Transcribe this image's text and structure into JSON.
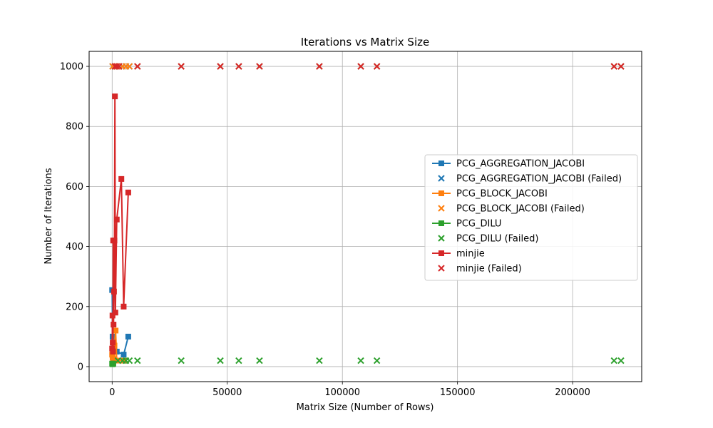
{
  "chart_data": {
    "type": "scatter",
    "title": "Iterations vs Matrix Size",
    "xlabel": "Matrix Size (Number of Rows)",
    "ylabel": "Number of Iterations",
    "xlim": [
      -10000,
      230000
    ],
    "ylim": [
      -50,
      1050
    ],
    "xticks": [
      0,
      50000,
      100000,
      150000,
      200000
    ],
    "yticks": [
      0,
      200,
      400,
      600,
      800,
      1000
    ],
    "grid": true,
    "legend_position": "right",
    "series": [
      {
        "name": "PCG_AGGREGATION_JACOBI",
        "kind": "line",
        "marker": "square",
        "color": "#1f77b4",
        "points": [
          [
            0,
            255
          ],
          [
            200,
            100
          ],
          [
            500,
            80
          ],
          [
            1000,
            60
          ],
          [
            2000,
            50
          ],
          [
            5000,
            40
          ],
          [
            7000,
            100
          ]
        ]
      },
      {
        "name": "PCG_AGGREGATION_JACOBI (Failed)",
        "kind": "scatter",
        "marker": "x",
        "color": "#1f77b4",
        "points": [
          [
            200,
            1000
          ],
          [
            1500,
            1000
          ],
          [
            3000,
            1000
          ],
          [
            4500,
            1000
          ],
          [
            6000,
            1000
          ],
          [
            7500,
            1000
          ],
          [
            11000,
            1000
          ],
          [
            30000,
            1000
          ],
          [
            47000,
            1000
          ],
          [
            55000,
            1000
          ],
          [
            64000,
            1000
          ],
          [
            90000,
            1000
          ],
          [
            108000,
            1000
          ],
          [
            115000,
            1000
          ],
          [
            218000,
            1000
          ],
          [
            221000,
            1000
          ]
        ]
      },
      {
        "name": "PCG_BLOCK_JACOBI",
        "kind": "line",
        "marker": "square",
        "color": "#ff7f0e",
        "points": [
          [
            0,
            40
          ],
          [
            200,
            30
          ],
          [
            500,
            25
          ],
          [
            1000,
            70
          ],
          [
            1500,
            120
          ],
          [
            2000,
            20
          ],
          [
            5000,
            20
          ]
        ]
      },
      {
        "name": "PCG_BLOCK_JACOBI (Failed)",
        "kind": "scatter",
        "marker": "x",
        "color": "#ff7f0e",
        "points": [
          [
            200,
            1000
          ],
          [
            1500,
            1000
          ],
          [
            3000,
            1000
          ],
          [
            4500,
            1000
          ],
          [
            6000,
            1000
          ],
          [
            7500,
            1000
          ],
          [
            11000,
            1000
          ],
          [
            30000,
            1000
          ],
          [
            47000,
            1000
          ],
          [
            55000,
            1000
          ],
          [
            64000,
            1000
          ],
          [
            90000,
            1000
          ],
          [
            108000,
            1000
          ],
          [
            115000,
            1000
          ],
          [
            218000,
            1000
          ],
          [
            221000,
            1000
          ]
        ]
      },
      {
        "name": "PCG_DILU",
        "kind": "line",
        "marker": "square",
        "color": "#2ca02c",
        "points": [
          [
            0,
            10
          ],
          [
            200,
            8
          ],
          [
            500,
            10
          ]
        ]
      },
      {
        "name": "PCG_DILU (Failed)",
        "kind": "scatter",
        "marker": "x",
        "color": "#2ca02c",
        "points": [
          [
            2500,
            20
          ],
          [
            4500,
            20
          ],
          [
            6000,
            20
          ],
          [
            7500,
            20
          ],
          [
            11000,
            20
          ],
          [
            30000,
            20
          ],
          [
            47000,
            20
          ],
          [
            55000,
            20
          ],
          [
            64000,
            20
          ],
          [
            90000,
            20
          ],
          [
            108000,
            20
          ],
          [
            115000,
            20
          ],
          [
            218000,
            20
          ],
          [
            221000,
            20
          ]
        ]
      },
      {
        "name": "minjie",
        "kind": "line",
        "marker": "square",
        "color": "#d62728",
        "points": [
          [
            0,
            60
          ],
          [
            150,
            170
          ],
          [
            250,
            80
          ],
          [
            350,
            50
          ],
          [
            450,
            420
          ],
          [
            600,
            140
          ],
          [
            800,
            250
          ],
          [
            1000,
            420
          ],
          [
            1200,
            900
          ],
          [
            1400,
            180
          ],
          [
            2000,
            490
          ],
          [
            4000,
            625
          ],
          [
            5000,
            200
          ],
          [
            7000,
            580
          ]
        ]
      },
      {
        "name": "minjie (Failed)",
        "kind": "scatter",
        "marker": "x",
        "color": "#d62728",
        "points": [
          [
            1200,
            1000
          ],
          [
            2000,
            1000
          ],
          [
            3000,
            1000
          ],
          [
            11000,
            1000
          ],
          [
            30000,
            1000
          ],
          [
            47000,
            1000
          ],
          [
            55000,
            1000
          ],
          [
            64000,
            1000
          ],
          [
            90000,
            1000
          ],
          [
            108000,
            1000
          ],
          [
            115000,
            1000
          ],
          [
            218000,
            1000
          ],
          [
            221000,
            1000
          ]
        ]
      }
    ]
  }
}
